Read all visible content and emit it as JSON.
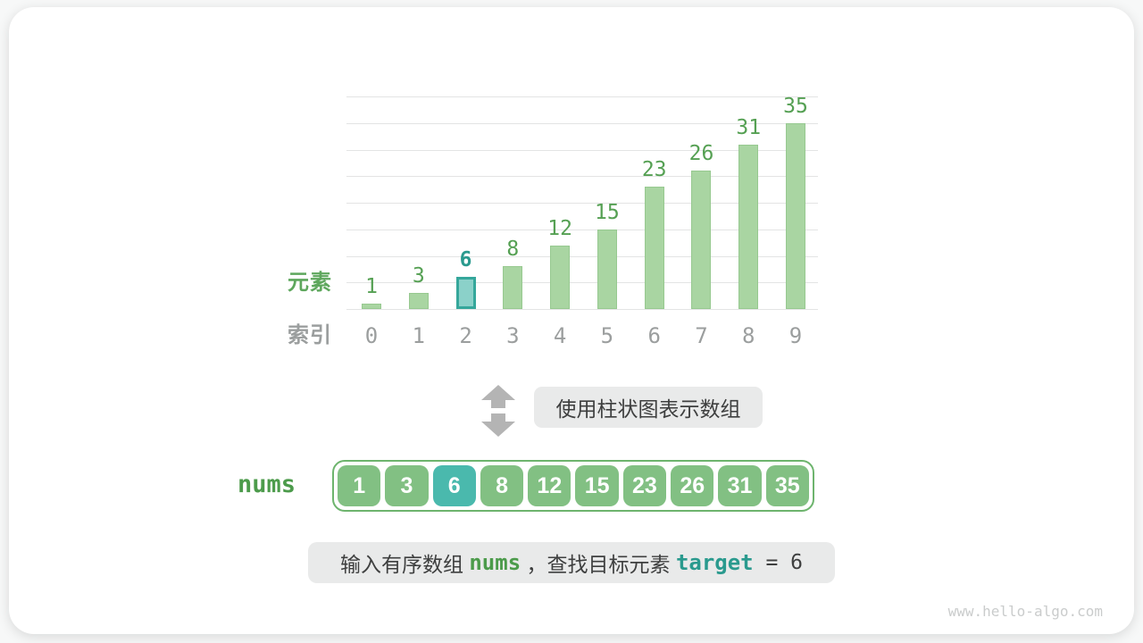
{
  "watermark": "www.hello-algo.com",
  "chart_data": {
    "type": "bar",
    "title": "",
    "ylabel": "元素",
    "xlabel": "索引",
    "categories": [
      "0",
      "1",
      "2",
      "3",
      "4",
      "5",
      "6",
      "7",
      "8",
      "9"
    ],
    "values": [
      1,
      3,
      6,
      8,
      12,
      15,
      23,
      26,
      31,
      35
    ],
    "highlight_index": 2,
    "ylim": [
      0,
      40
    ],
    "grid_step": 5,
    "grid": true,
    "legend_position": "none",
    "colors": {
      "bar_fill": "#a9d5a2",
      "bar_border": "#97c990",
      "highlight_fill": "#8bd1c9",
      "highlight_border": "#35a79b",
      "value_label": "#55a053",
      "highlight_value_label": "#2a9a8e",
      "index_label": "#9b9e9e"
    }
  },
  "transform_note": {
    "arrow_icon": "double-vertical-arrow",
    "label": "使用柱状图表示数组"
  },
  "array": {
    "name": "nums",
    "values": [
      "1",
      "3",
      "6",
      "8",
      "12",
      "15",
      "23",
      "26",
      "31",
      "35"
    ],
    "highlight_index": 2,
    "cell_green": "#82c083",
    "cell_teal": "#4ab9ad"
  },
  "caption": {
    "segments": [
      {
        "text": "输入有序数组 ",
        "style": "plain"
      },
      {
        "text": "nums",
        "style": "code-green"
      },
      {
        "text": " ，查找目标元素 ",
        "style": "plain"
      },
      {
        "text": "target",
        "style": "code-teal"
      },
      {
        "text": " = 6",
        "style": "code-plain"
      }
    ]
  }
}
